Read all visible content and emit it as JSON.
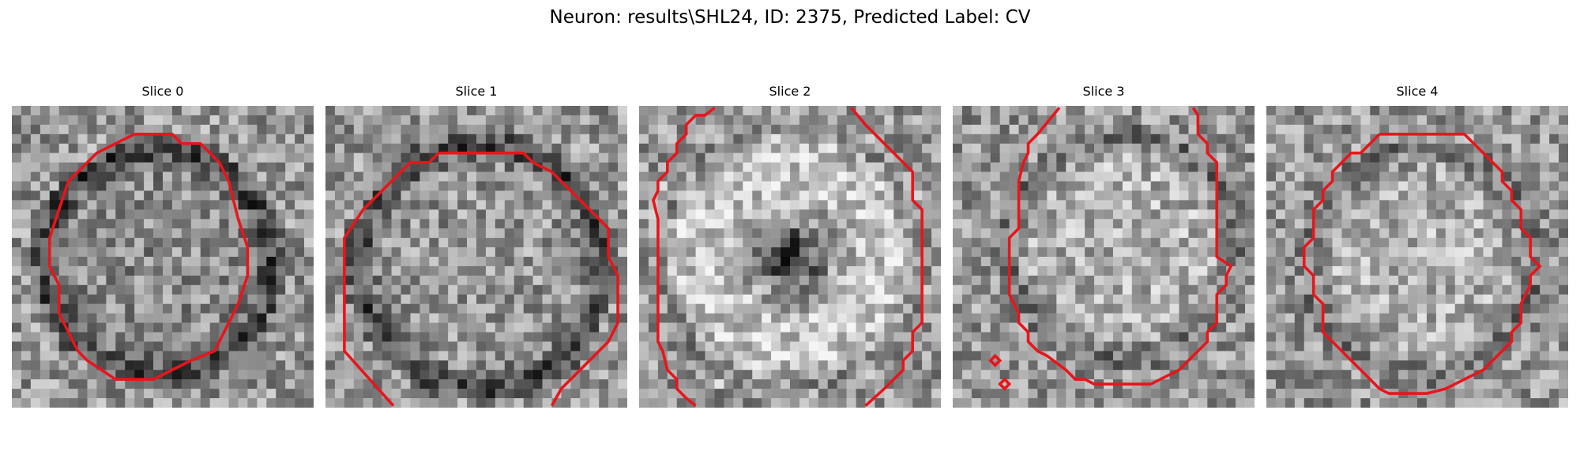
{
  "figure": {
    "title": "Neuron: results\\SHL24, ID: 2375, Predicted Label: CV"
  },
  "panels": [
    {
      "title": "Slice 0"
    },
    {
      "title": "Slice 1"
    },
    {
      "title": "Slice 2"
    },
    {
      "title": "Slice 3"
    },
    {
      "title": "Slice 4"
    }
  ],
  "colors": {
    "contour": "#e8151b",
    "background": "#ffffff"
  },
  "image": {
    "colormap": "grayscale",
    "grid_cells": 32
  }
}
